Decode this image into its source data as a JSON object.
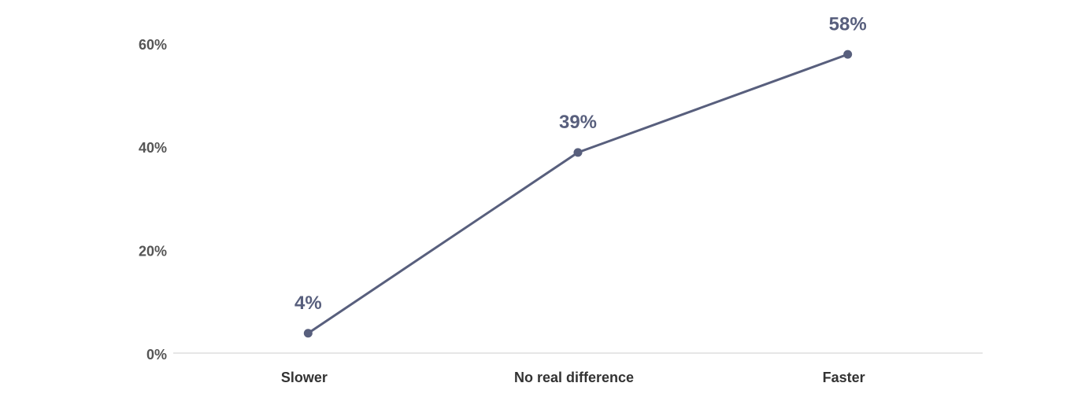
{
  "chart_data": {
    "type": "line",
    "categories": [
      "Slower",
      "No real difference",
      "Faster"
    ],
    "series": [
      {
        "color": "#585f7d",
        "values": [
          4,
          39,
          58
        ],
        "value_labels": [
          "4%",
          "39%",
          "58%"
        ]
      }
    ],
    "ylim": [
      0,
      60
    ],
    "yticks": [
      {
        "value": 0,
        "label": "0%"
      },
      {
        "value": 20,
        "label": "20%"
      },
      {
        "value": 40,
        "label": "40%"
      },
      {
        "value": 60,
        "label": "60%"
      }
    ],
    "grid": false
  }
}
